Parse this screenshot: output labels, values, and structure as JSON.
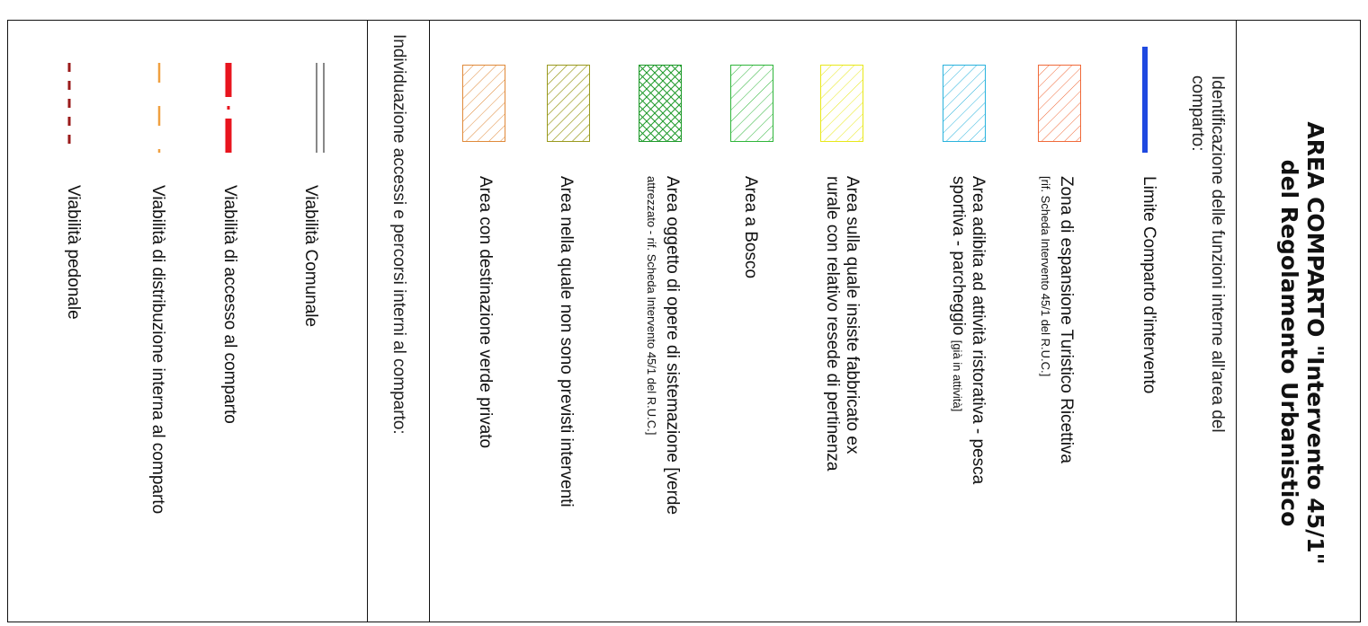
{
  "title": {
    "line1": "AREA COMPARTO \"Intervento 45/1\"",
    "line2": "del Regolamento Urbanistico"
  },
  "section1": {
    "heading_line1": "Identificazione delle funzioni interne all'area del",
    "heading_line2": "comparto:",
    "items": [
      {
        "line1": "Limite Comparto d'intervento",
        "line2": "",
        "line2_small": "",
        "color": "#1f49e0"
      },
      {
        "line1": "Zona di espansione Turistico Ricettiva",
        "line2": "",
        "line2_small": "[rif. Scheda Intervento 45/1  del R.U.C.]",
        "color": "#f06a3a"
      },
      {
        "line1": "Area adibita ad attività ristorativa - pesca",
        "line2": "sportiva - parcheggio",
        "line2_small": "[già in attività]",
        "color": "#2ab3dd"
      },
      {
        "line1": "Area sulla quale insiste fabbricato ex",
        "line2": "rurale con relativo resede di pertinenza",
        "line2_small": "",
        "color": "#f2f23a"
      },
      {
        "line1": "Area a Bosco",
        "line2": "",
        "line2_small": "",
        "color": "#2fb53a"
      },
      {
        "line1": "Area oggetto di opere di sistemazione [verde",
        "line2": "",
        "line2_small": "attrezzato - rif. Scheda Intervento 45/1  del R.U.C.]",
        "color": "#1e9a2a"
      },
      {
        "line1": "Area nella quale non sono previsti interventi",
        "line2": "",
        "line2_small": "",
        "color": "#9a9a1e"
      },
      {
        "line1": "Area con destinazione verde privato",
        "line2": "",
        "line2_small": "",
        "color": "#e08a3a"
      }
    ]
  },
  "section2": {
    "heading": "Individuazione accessi e percorsi interni al comparto:",
    "items": [
      {
        "label": "Viabilità Comunale",
        "color": "#888888"
      },
      {
        "label": "Viabilità di accesso al comparto",
        "color": "#e8141e"
      },
      {
        "label": "Viabilità di distribuzione interna al comparto",
        "color": "#f0a040"
      },
      {
        "label": "Viabilità pedonale",
        "color": "#9a1a1a"
      }
    ]
  }
}
